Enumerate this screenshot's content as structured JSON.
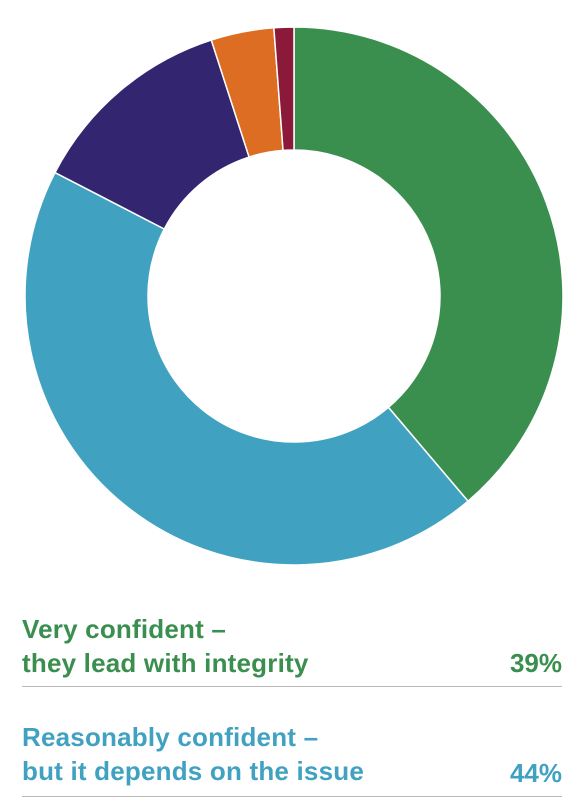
{
  "chart_data": {
    "type": "pie",
    "donut": true,
    "start_angle_deg": 0,
    "direction": "clockwise",
    "slices": [
      {
        "label_lines": [
          "Very confident –",
          "they lead with integrity"
        ],
        "value": 39,
        "value_label": "39%",
        "color": "#3a8f4f"
      },
      {
        "label_lines": [
          "Reasonably confident –",
          "but it depends on the issue"
        ],
        "value": 44,
        "value_label": "44%",
        "color": "#40a2c0"
      },
      {
        "value": 12.5,
        "color": "#33256f"
      },
      {
        "value": 3.8,
        "color": "#dc6d22"
      },
      {
        "value": 1.2,
        "color": "#8b1a3a"
      }
    ]
  }
}
